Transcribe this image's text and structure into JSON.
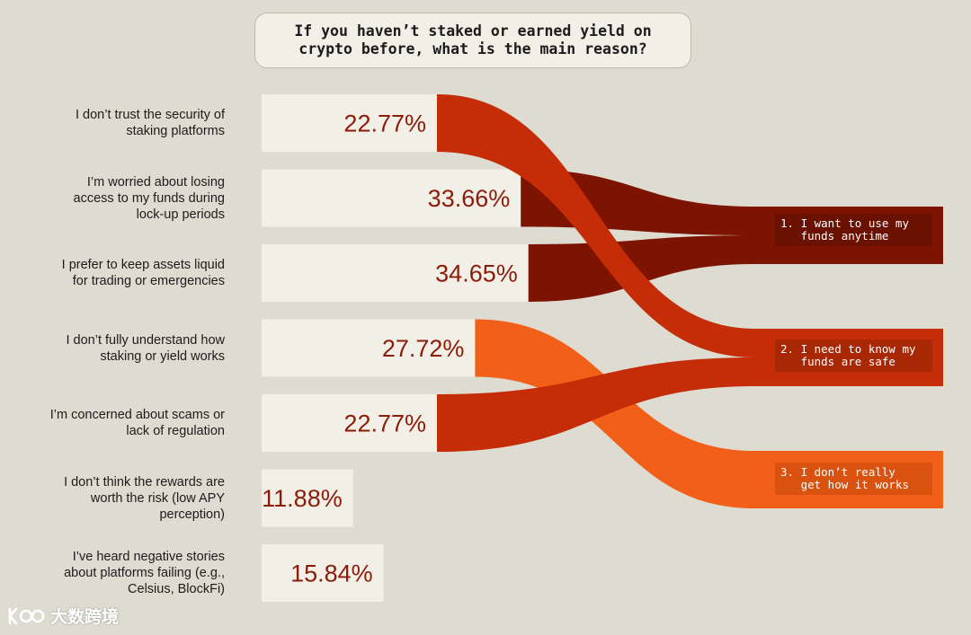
{
  "colors": {
    "background": "#dedbd1",
    "bar_bg": "#f2efe7",
    "value_text": "#8c1c0a",
    "flow_1": "#7d1402",
    "flow_2": "#c42d07",
    "flow_3": "#f25f19",
    "label_1_bg": "#6b1102",
    "label_2_bg": "#a82705",
    "label_3_bg": "#d9520f"
  },
  "chart_data": {
    "type": "bar",
    "title": "If you haven’t staked or earned yield on crypto before, what is the main reason?",
    "categories": [
      "I don’t trust the security of staking platforms",
      "I’m worried about losing access to my funds during lock-up periods",
      "I prefer to keep assets liquid for trading or emergencies",
      "I don’t fully understand how staking or yield works",
      "I’m concerned about scams or lack of regulation",
      "I don’t think the rewards are worth the risk (low APY perception)",
      "I’ve heard negative stories about platforms failing (e.g., Celsius, BlockFi)"
    ],
    "category_lines": [
      [
        "I don’t trust the security of",
        "staking platforms"
      ],
      [
        "I’m worried about losing",
        "access to my funds during",
        "lock-up periods"
      ],
      [
        "I prefer to keep assets liquid",
        "for trading or emergencies"
      ],
      [
        "I don’t fully understand how",
        "staking or yield works"
      ],
      [
        "I’m concerned about scams or",
        "lack of regulation"
      ],
      [
        "I don’t think the rewards are",
        "worth the risk (low APY",
        "perception)"
      ],
      [
        "I’ve heard negative stories",
        "about platforms failing (e.g.,",
        "Celsius, BlockFi)"
      ]
    ],
    "values": [
      22.77,
      33.66,
      34.65,
      27.72,
      22.77,
      11.88,
      15.84
    ],
    "value_labels": [
      "22.77%",
      "33.66%",
      "34.65%",
      "27.72%",
      "22.77%",
      "11.88%",
      "15.84%"
    ],
    "xlim": [
      0,
      60
    ],
    "grid": false,
    "legend": "none",
    "groups": [
      {
        "id": 1,
        "label_lines": [
          "1. I want to use my",
          "   funds anytime"
        ],
        "color_key": "flow_1",
        "sources": [
          1,
          2
        ]
      },
      {
        "id": 2,
        "label_lines": [
          "2. I need to know my",
          "   funds are safe"
        ],
        "color_key": "flow_2",
        "sources": [
          0,
          4
        ]
      },
      {
        "id": 3,
        "label_lines": [
          "3. I don’t really",
          "   get how it works"
        ],
        "color_key": "flow_3",
        "sources": [
          3
        ]
      }
    ]
  },
  "brand": {
    "logo_icon": "kuajing-logo-icon",
    "text": "大数跨境"
  }
}
